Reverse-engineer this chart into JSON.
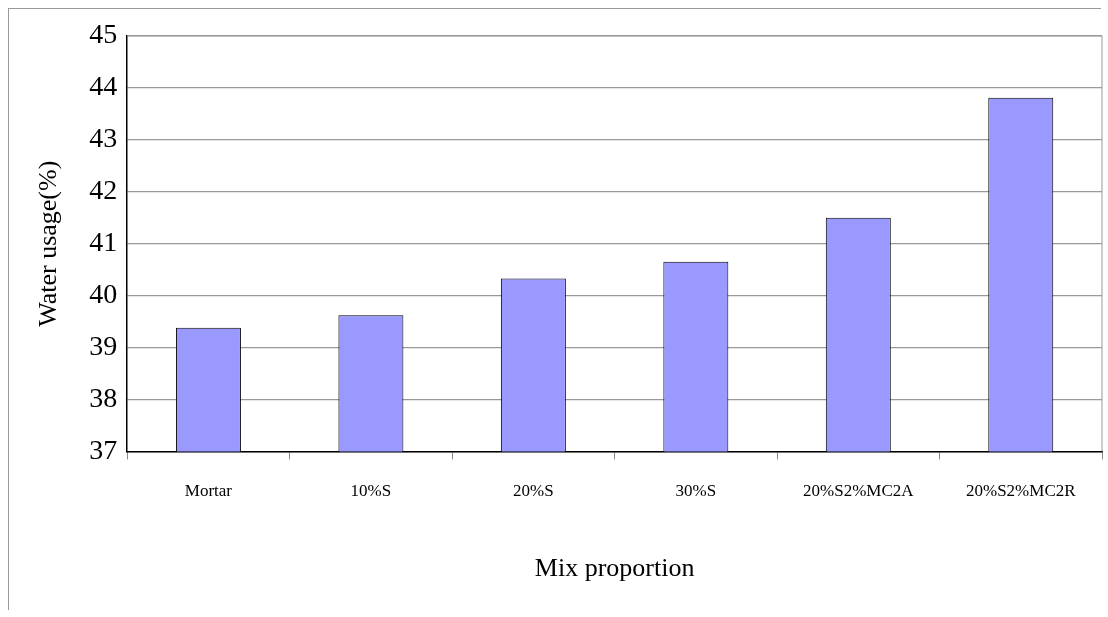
{
  "chart_data": {
    "type": "bar",
    "xlabel": "Mix proportion",
    "ylabel": "Water usage(%)",
    "categories": [
      "Mortar",
      "10%S",
      "20%S",
      "30%S",
      "20%S2%MC2A",
      "20%S2%MC2R"
    ],
    "values": [
      39.38,
      39.62,
      40.33,
      40.65,
      41.5,
      43.81
    ],
    "color": "#9999ff",
    "ylim": [
      37,
      45
    ],
    "yticks": [
      37,
      38,
      39,
      40,
      41,
      42,
      43,
      44,
      45
    ],
    "grid": "y",
    "legend": false
  }
}
